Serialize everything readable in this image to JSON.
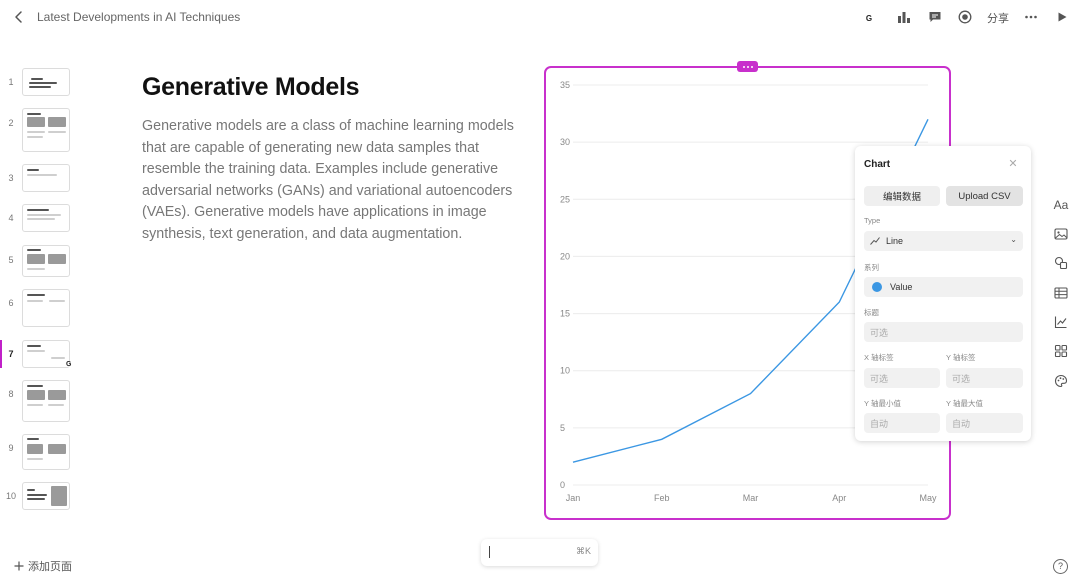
{
  "header": {
    "title": "Latest Developments in AI Techniques",
    "avatar_letter": "G",
    "share_label": "分享",
    "icons": [
      "chevron-left-icon",
      "bar-chart-icon",
      "comment-icon",
      "record-icon",
      "more-icon",
      "play-icon"
    ]
  },
  "thumbnails": {
    "items": [
      "1",
      "2",
      "3",
      "4",
      "5",
      "6",
      "7",
      "8",
      "9",
      "10"
    ],
    "active_index": 7,
    "active_marker_letter": "G",
    "add_page_label": "添加页面"
  },
  "slide": {
    "title": "Generative Models",
    "body": "Generative models are a class of machine learning models that are capable of generating new data samples that resemble the training data. Examples include generative adversarial networks (GANs) and variational autoencoders (VAEs). Generative models have applications in image synthesis, text generation, and data augmentation."
  },
  "chart_data": {
    "type": "line",
    "categories": [
      "Jan",
      "Feb",
      "Mar",
      "Apr",
      "May"
    ],
    "series": [
      {
        "name": "Value",
        "values": [
          2,
          4,
          8,
          16,
          32
        ]
      }
    ],
    "ylim": [
      0,
      35
    ],
    "yticks": [
      "0",
      "5",
      "10",
      "15",
      "20",
      "25",
      "30",
      "35"
    ],
    "grid": true,
    "line_color": "#3b97e3"
  },
  "chart_panel": {
    "title": "Chart",
    "edit_data_label": "编辑数据",
    "upload_csv_label": "Upload CSV",
    "type_label": "Type",
    "type_value": "Line",
    "series_label": "系列",
    "series_name": "Value",
    "title_label": "标题",
    "title_placeholder": "可选",
    "x_axis_label": "X 轴标签",
    "x_axis_placeholder": "可选",
    "y_axis_label": "Y 轴标签",
    "y_axis_placeholder": "可选",
    "y_min_label": "Y 轴最小值",
    "y_min_placeholder": "自动",
    "y_max_label": "Y 轴最大值",
    "y_max_placeholder": "自动"
  },
  "rail": {
    "text_label": "Aa",
    "icons": [
      "text-icon",
      "image-icon",
      "shapes-icon",
      "table-icon",
      "chart-icon",
      "grid-icon",
      "palette-icon"
    ]
  },
  "command_bar": {
    "shortcut": "⌘K"
  },
  "help_label": "?",
  "colors": {
    "accent": "#c830cc",
    "line": "#3b97e3"
  }
}
